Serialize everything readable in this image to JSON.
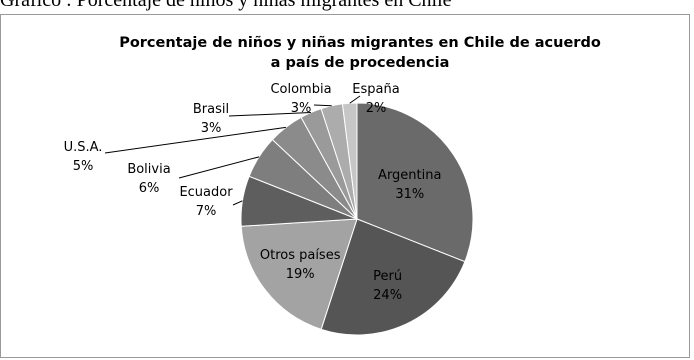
{
  "page": {
    "heading": "Gráfico : Porcentaje de niños y niñas migrantes en Chile"
  },
  "chart_data": {
    "type": "pie",
    "title_lines": [
      "Porcentaje de niños y niñas migrantes en Chile de acuerdo",
      "a país de procedencia"
    ],
    "slices": [
      {
        "label": "Argentina",
        "value": 31,
        "value_label": "31%",
        "color": "#6a6a6a"
      },
      {
        "label": "Perú",
        "value": 24,
        "value_label": "24%",
        "color": "#555555"
      },
      {
        "label": "Otros países",
        "value": 19,
        "value_label": "19%",
        "color": "#a3a3a3"
      },
      {
        "label": "Ecuador",
        "value": 7,
        "value_label": "7%",
        "color": "#5e5e5e"
      },
      {
        "label": "Bolivia",
        "value": 6,
        "value_label": "6%",
        "color": "#7e7e7e"
      },
      {
        "label": "U.S.A.",
        "value": 5,
        "value_label": "5%",
        "color": "#8b8b8b"
      },
      {
        "label": "Brasil",
        "value": 3,
        "value_label": "3%",
        "color": "#9a9a9a"
      },
      {
        "label": "Colombia",
        "value": 3,
        "value_label": "3%",
        "color": "#acacac"
      },
      {
        "label": "España",
        "value": 2,
        "value_label": "2%",
        "color": "#c6c6c6"
      }
    ],
    "legend": "none"
  }
}
